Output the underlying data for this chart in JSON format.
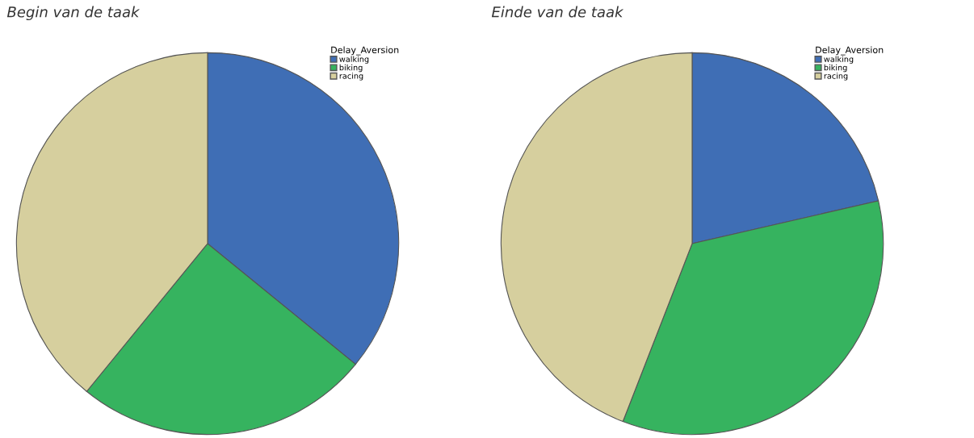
{
  "chart_data": [
    {
      "type": "pie",
      "title": "Begin van de taak",
      "legend_title": "Delay_Aversion",
      "legend": "top right",
      "categories": [
        "walking",
        "biking",
        "racing"
      ],
      "values": [
        35.9,
        25.0,
        39.1
      ],
      "colors": [
        "#3f6eb5",
        "#36b35f",
        "#d6cf9e"
      ]
    },
    {
      "type": "pie",
      "title": "Einde van de taak",
      "legend_title": "Delay_Aversion",
      "legend": "top right",
      "categories": [
        "walking",
        "biking",
        "racing"
      ],
      "values": [
        21.4,
        34.5,
        44.1
      ],
      "colors": [
        "#3f6eb5",
        "#36b35f",
        "#d6cf9e"
      ]
    }
  ]
}
